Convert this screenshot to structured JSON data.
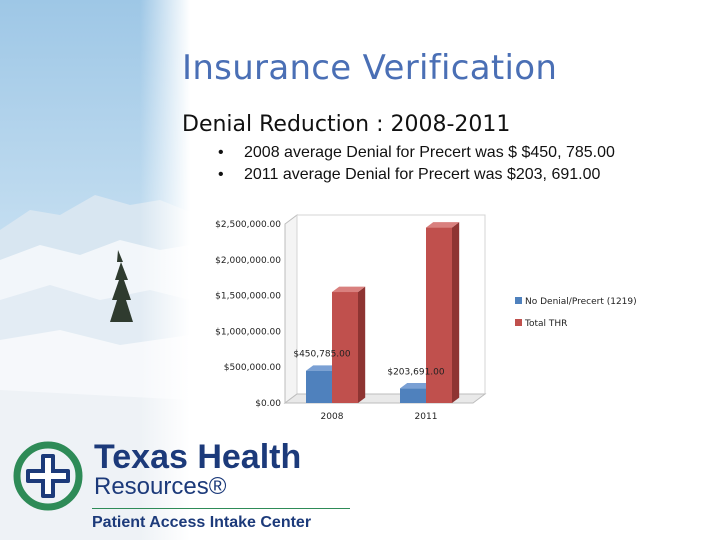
{
  "slide": {
    "title": "Insurance Verification",
    "subtitle": "Denial Reduction : 2008-2011",
    "bullets": [
      "2008 average Denial for Precert was $ $450, 785.00",
      "2011 average Denial for Precert was $203, 691.00"
    ],
    "bullet_char": "•"
  },
  "logo": {
    "line1": "Texas Health",
    "line2": "Resources®",
    "line3": "Patient Access Intake Center"
  },
  "colors": {
    "title": "#4a6fb5",
    "series_blue": "#4f81bd",
    "series_red": "#c0504d"
  },
  "chart_data": {
    "type": "bar",
    "categories": [
      "2008",
      "2011"
    ],
    "series": [
      {
        "name": "No Denial/Precert (1219)",
        "values": [
          450785,
          203691
        ]
      },
      {
        "name": "Total THR",
        "values": [
          1550000,
          2450000
        ]
      }
    ],
    "ylim": [
      0,
      2500000
    ],
    "y_ticks": [
      "$0.00",
      "$500,000.00",
      "$1,000,000.00",
      "$1,500,000.00",
      "$2,000,000.00",
      "$2,500,000.00"
    ],
    "data_labels": [
      "$450,785.00",
      "$203,691.00"
    ],
    "legend_position": "right",
    "grid": false
  }
}
